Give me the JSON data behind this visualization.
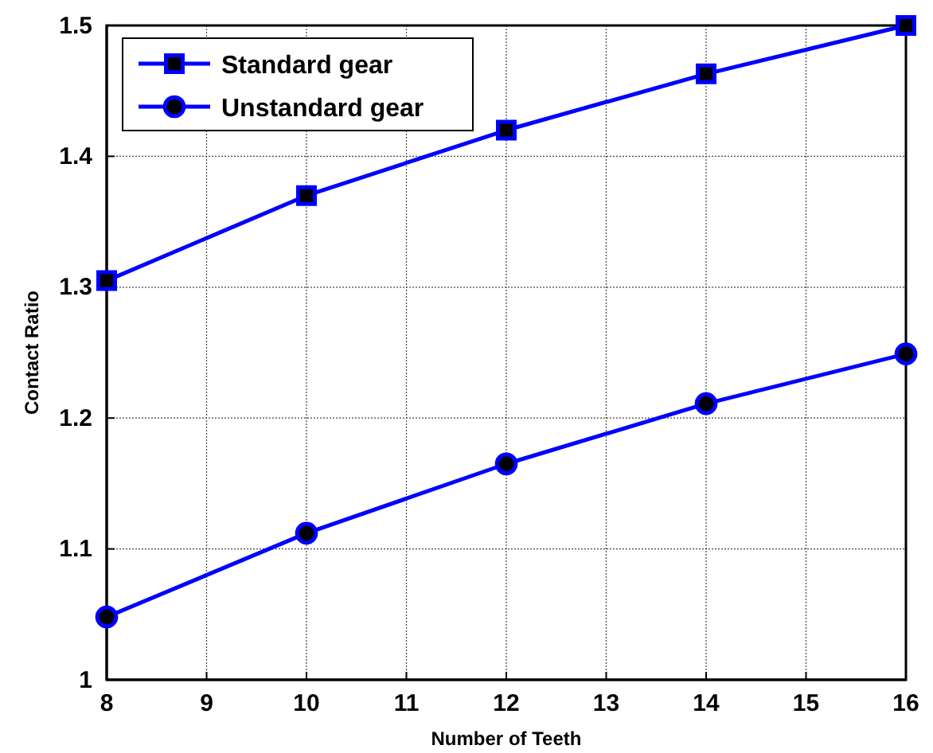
{
  "chart_data": {
    "type": "line",
    "xlabel": "Number of Teeth",
    "ylabel": "Contact Ratio",
    "x": [
      8,
      10,
      12,
      14,
      16
    ],
    "series": [
      {
        "name": "Standard gear",
        "color": "#0000ff",
        "marker": "square",
        "values": [
          1.305,
          1.37,
          1.42,
          1.463,
          1.5
        ]
      },
      {
        "name": "Unstandard gear",
        "color": "#0000ff",
        "marker": "circle",
        "values": [
          1.048,
          1.112,
          1.165,
          1.211,
          1.249
        ]
      }
    ],
    "xlim": [
      8,
      16
    ],
    "xticks": [
      8,
      9,
      10,
      11,
      12,
      13,
      14,
      15,
      16
    ],
    "ylim": [
      1,
      1.5
    ],
    "yticks": [
      1,
      1.1,
      1.2,
      1.3,
      1.4,
      1.5
    ],
    "grid": true,
    "legend": "top left",
    "line_style": "solid"
  }
}
